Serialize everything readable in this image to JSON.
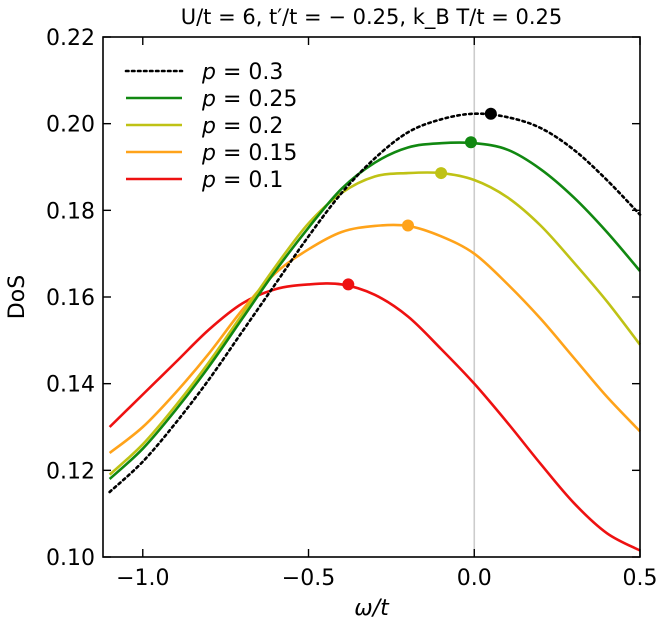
{
  "chart_data": {
    "type": "line",
    "title": "U/t = 6, t′/t = − 0.25, k_B T/t = 0.25",
    "xlabel": "ω/t",
    "ylabel": "DoS",
    "xlim": [
      -1.12,
      0.5
    ],
    "ylim": [
      0.1,
      0.22
    ],
    "xticks": [
      -1.0,
      -0.5,
      0.0,
      0.5
    ],
    "xtick_labels": [
      "−1.0",
      "−0.5",
      "0.0",
      "0.5"
    ],
    "yticks": [
      0.1,
      0.12,
      0.14,
      0.16,
      0.18,
      0.2,
      0.22
    ],
    "ytick_labels": [
      "0.10",
      "0.12",
      "0.14",
      "0.16",
      "0.18",
      "0.20",
      "0.22"
    ],
    "vertical_reference_line_x": 0.0,
    "legend_position": "upper-left",
    "grid": false,
    "x": [
      -1.1,
      -1.0,
      -0.9,
      -0.8,
      -0.7,
      -0.6,
      -0.5,
      -0.4,
      -0.3,
      -0.2,
      -0.1,
      0.0,
      0.1,
      0.2,
      0.3,
      0.4,
      0.5
    ],
    "series": [
      {
        "name": "p = 0.3",
        "color": "#000000",
        "style": "dotted",
        "values": [
          0.115,
          0.122,
          0.131,
          0.141,
          0.152,
          0.163,
          0.174,
          0.184,
          0.192,
          0.198,
          0.201,
          0.2023,
          0.2015,
          0.199,
          0.194,
          0.187,
          0.179
        ],
        "peak": {
          "x": 0.05,
          "y": 0.2023
        }
      },
      {
        "name": "p = 0.25",
        "color": "#118811",
        "style": "solid",
        "values": [
          0.118,
          0.125,
          0.134,
          0.144,
          0.155,
          0.166,
          0.176,
          0.185,
          0.191,
          0.1945,
          0.1955,
          0.1955,
          0.194,
          0.1895,
          0.183,
          0.175,
          0.166
        ],
        "peak": {
          "x": -0.01,
          "y": 0.1957
        }
      },
      {
        "name": "p = 0.2",
        "color": "#bfc215",
        "style": "solid",
        "values": [
          0.119,
          0.126,
          0.135,
          0.145,
          0.156,
          0.167,
          0.177,
          0.184,
          0.1878,
          0.1886,
          0.1886,
          0.187,
          0.183,
          0.1765,
          0.168,
          0.159,
          0.149
        ],
        "peak": {
          "x": -0.1,
          "y": 0.1886
        }
      },
      {
        "name": "p = 0.15",
        "color": "#ffa31a",
        "style": "solid",
        "values": [
          0.124,
          0.13,
          0.138,
          0.147,
          0.157,
          0.1655,
          0.171,
          0.175,
          0.1764,
          0.1764,
          0.174,
          0.17,
          0.163,
          0.155,
          0.146,
          0.137,
          0.129
        ],
        "peak": {
          "x": -0.2,
          "y": 0.1765
        }
      },
      {
        "name": "p = 0.1",
        "color": "#ee1111",
        "style": "solid",
        "values": [
          0.13,
          0.1375,
          0.145,
          0.1525,
          0.1585,
          0.1618,
          0.1629,
          0.1629,
          0.1605,
          0.1555,
          0.148,
          0.14,
          0.131,
          0.1215,
          0.1125,
          0.1055,
          0.1015
        ],
        "peak": {
          "x": -0.38,
          "y": 0.1629
        }
      }
    ]
  }
}
